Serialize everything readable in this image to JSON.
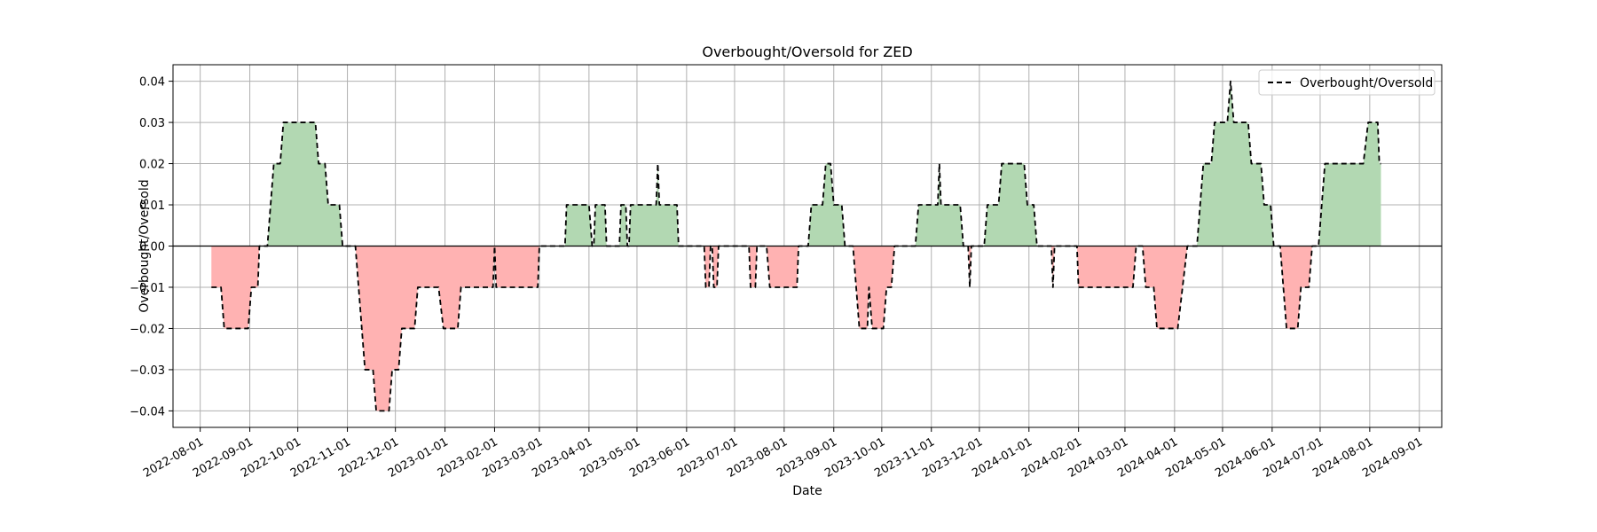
{
  "chart_data": {
    "type": "area",
    "title": "Overbought/Oversold for ZED",
    "xlabel": "Date",
    "ylabel": "Overbought/Oversold",
    "x_range": [
      "2022-07-15",
      "2024-09-15"
    ],
    "ylim": [
      -0.044,
      0.044
    ],
    "x_ticks": [
      "2022-08-01",
      "2022-09-01",
      "2022-10-01",
      "2022-11-01",
      "2022-12-01",
      "2023-01-01",
      "2023-02-01",
      "2023-03-01",
      "2023-04-01",
      "2023-05-01",
      "2023-06-01",
      "2023-07-01",
      "2023-08-01",
      "2023-09-01",
      "2023-10-01",
      "2023-11-01",
      "2023-12-01",
      "2024-01-01",
      "2024-02-01",
      "2024-03-01",
      "2024-04-01",
      "2024-05-01",
      "2024-06-01",
      "2024-07-01",
      "2024-08-01",
      "2024-09-01"
    ],
    "y_ticks": [
      -0.04,
      -0.03,
      -0.02,
      -0.01,
      0.0,
      0.01,
      0.02,
      0.03,
      0.04
    ],
    "y_tick_labels": [
      "−0.04",
      "−0.03",
      "−0.02",
      "−0.01",
      "0.00",
      "0.01",
      "0.02",
      "0.03",
      "0.04"
    ],
    "grid": true,
    "legend": {
      "position": "top-right",
      "entries": [
        {
          "label": "Overbought/Oversold",
          "style": "dashed"
        }
      ]
    },
    "zero_line": 0,
    "colors": {
      "line": "#000000",
      "positive_fill": "#b2d8b2",
      "negative_fill": "#ffb2b2",
      "grid": "#b0b0b0"
    },
    "series": [
      {
        "name": "Overbought/Oversold",
        "points": [
          [
            "2022-08-08",
            -0.01
          ],
          [
            "2022-08-14",
            -0.01
          ],
          [
            "2022-08-16",
            -0.02
          ],
          [
            "2022-08-31",
            -0.02
          ],
          [
            "2022-09-02",
            -0.01
          ],
          [
            "2022-09-06",
            -0.01
          ],
          [
            "2022-09-07",
            0.0
          ],
          [
            "2022-09-12",
            0.0
          ],
          [
            "2022-09-14",
            0.01
          ],
          [
            "2022-09-16",
            0.02
          ],
          [
            "2022-09-20",
            0.02
          ],
          [
            "2022-09-22",
            0.03
          ],
          [
            "2022-10-12",
            0.03
          ],
          [
            "2022-10-14",
            0.02
          ],
          [
            "2022-10-18",
            0.02
          ],
          [
            "2022-10-20",
            0.01
          ],
          [
            "2022-10-27",
            0.01
          ],
          [
            "2022-10-29",
            0.0
          ],
          [
            "2022-11-06",
            0.0
          ],
          [
            "2022-11-08",
            -0.01
          ],
          [
            "2022-11-10",
            -0.02
          ],
          [
            "2022-11-12",
            -0.03
          ],
          [
            "2022-11-17",
            -0.03
          ],
          [
            "2022-11-19",
            -0.04
          ],
          [
            "2022-11-27",
            -0.04
          ],
          [
            "2022-11-29",
            -0.03
          ],
          [
            "2022-12-03",
            -0.03
          ],
          [
            "2022-12-05",
            -0.02
          ],
          [
            "2022-12-13",
            -0.02
          ],
          [
            "2022-12-15",
            -0.01
          ],
          [
            "2022-12-28",
            -0.01
          ],
          [
            "2022-12-31",
            -0.02
          ],
          [
            "2023-01-09",
            -0.02
          ],
          [
            "2023-01-11",
            -0.01
          ],
          [
            "2023-01-31",
            -0.01
          ],
          [
            "2023-02-01",
            0.0
          ],
          [
            "2023-02-02",
            -0.01
          ],
          [
            "2023-02-28",
            -0.01
          ],
          [
            "2023-03-01",
            0.0
          ],
          [
            "2023-03-17",
            0.0
          ],
          [
            "2023-03-18",
            0.01
          ],
          [
            "2023-04-01",
            0.01
          ],
          [
            "2023-04-03",
            0.0
          ],
          [
            "2023-04-04",
            0.0
          ],
          [
            "2023-04-05",
            0.01
          ],
          [
            "2023-04-11",
            0.01
          ],
          [
            "2023-04-12",
            0.0
          ],
          [
            "2023-04-20",
            0.0
          ],
          [
            "2023-04-21",
            0.01
          ],
          [
            "2023-04-24",
            0.01
          ],
          [
            "2023-04-25",
            0.0
          ],
          [
            "2023-04-26",
            0.0
          ],
          [
            "2023-04-27",
            0.01
          ],
          [
            "2023-05-13",
            0.01
          ],
          [
            "2023-05-14",
            0.02
          ],
          [
            "2023-05-15",
            0.01
          ],
          [
            "2023-05-26",
            0.01
          ],
          [
            "2023-05-27",
            0.0
          ],
          [
            "2023-06-12",
            0.0
          ],
          [
            "2023-06-13",
            -0.01
          ],
          [
            "2023-06-15",
            -0.01
          ],
          [
            "2023-06-16",
            0.0
          ],
          [
            "2023-06-17",
            0.0
          ],
          [
            "2023-06-18",
            -0.01
          ],
          [
            "2023-06-20",
            -0.01
          ],
          [
            "2023-06-21",
            0.0
          ],
          [
            "2023-07-10",
            0.0
          ],
          [
            "2023-07-11",
            -0.01
          ],
          [
            "2023-07-14",
            -0.01
          ],
          [
            "2023-07-15",
            0.0
          ],
          [
            "2023-07-21",
            0.0
          ],
          [
            "2023-07-23",
            -0.01
          ],
          [
            "2023-08-09",
            -0.01
          ],
          [
            "2023-08-10",
            0.0
          ],
          [
            "2023-08-16",
            0.0
          ],
          [
            "2023-08-18",
            0.01
          ],
          [
            "2023-08-25",
            0.01
          ],
          [
            "2023-08-27",
            0.02
          ],
          [
            "2023-08-30",
            0.02
          ],
          [
            "2023-09-01",
            0.01
          ],
          [
            "2023-09-06",
            0.01
          ],
          [
            "2023-09-08",
            0.0
          ],
          [
            "2023-09-13",
            0.0
          ],
          [
            "2023-09-15",
            -0.01
          ],
          [
            "2023-09-17",
            -0.02
          ],
          [
            "2023-09-22",
            -0.02
          ],
          [
            "2023-09-23",
            -0.01
          ],
          [
            "2023-09-25",
            -0.02
          ],
          [
            "2023-10-02",
            -0.02
          ],
          [
            "2023-10-04",
            -0.01
          ],
          [
            "2023-10-07",
            -0.01
          ],
          [
            "2023-10-09",
            0.0
          ],
          [
            "2023-10-22",
            0.0
          ],
          [
            "2023-10-24",
            0.01
          ],
          [
            "2023-11-05",
            0.01
          ],
          [
            "2023-11-06",
            0.02
          ],
          [
            "2023-11-07",
            0.01
          ],
          [
            "2023-11-19",
            0.01
          ],
          [
            "2023-11-21",
            0.0
          ],
          [
            "2023-11-24",
            0.0
          ],
          [
            "2023-11-25",
            -0.01
          ],
          [
            "2023-11-26",
            0.0
          ],
          [
            "2023-12-04",
            0.0
          ],
          [
            "2023-12-06",
            0.01
          ],
          [
            "2023-12-13",
            0.01
          ],
          [
            "2023-12-15",
            0.02
          ],
          [
            "2023-12-29",
            0.02
          ],
          [
            "2023-12-31",
            0.01
          ],
          [
            "2024-01-04",
            0.01
          ],
          [
            "2024-01-06",
            0.0
          ],
          [
            "2024-01-15",
            0.0
          ],
          [
            "2024-01-16",
            -0.01
          ],
          [
            "2024-01-17",
            0.0
          ],
          [
            "2024-01-31",
            0.0
          ],
          [
            "2024-02-01",
            -0.01
          ],
          [
            "2024-03-06",
            -0.01
          ],
          [
            "2024-03-08",
            0.0
          ],
          [
            "2024-03-12",
            0.0
          ],
          [
            "2024-03-14",
            -0.01
          ],
          [
            "2024-03-19",
            -0.01
          ],
          [
            "2024-03-21",
            -0.02
          ],
          [
            "2024-04-03",
            -0.02
          ],
          [
            "2024-04-06",
            -0.01
          ],
          [
            "2024-04-09",
            0.0
          ],
          [
            "2024-04-15",
            0.0
          ],
          [
            "2024-04-17",
            0.01
          ],
          [
            "2024-04-19",
            0.02
          ],
          [
            "2024-04-24",
            0.02
          ],
          [
            "2024-04-26",
            0.03
          ],
          [
            "2024-05-04",
            0.03
          ],
          [
            "2024-05-06",
            0.04
          ],
          [
            "2024-05-08",
            0.03
          ],
          [
            "2024-05-17",
            0.03
          ],
          [
            "2024-05-19",
            0.02
          ],
          [
            "2024-05-25",
            0.02
          ],
          [
            "2024-05-27",
            0.01
          ],
          [
            "2024-05-31",
            0.01
          ],
          [
            "2024-06-02",
            0.0
          ],
          [
            "2024-06-06",
            0.0
          ],
          [
            "2024-06-08",
            -0.01
          ],
          [
            "2024-06-10",
            -0.02
          ],
          [
            "2024-06-17",
            -0.02
          ],
          [
            "2024-06-19",
            -0.01
          ],
          [
            "2024-06-24",
            -0.01
          ],
          [
            "2024-06-26",
            0.0
          ],
          [
            "2024-06-30",
            0.0
          ],
          [
            "2024-07-02",
            0.01
          ],
          [
            "2024-07-04",
            0.02
          ],
          [
            "2024-07-28",
            0.02
          ],
          [
            "2024-07-31",
            0.03
          ],
          [
            "2024-08-06",
            0.03
          ],
          [
            "2024-08-07",
            0.02
          ],
          [
            "2024-08-08",
            0.02
          ]
        ]
      }
    ]
  }
}
